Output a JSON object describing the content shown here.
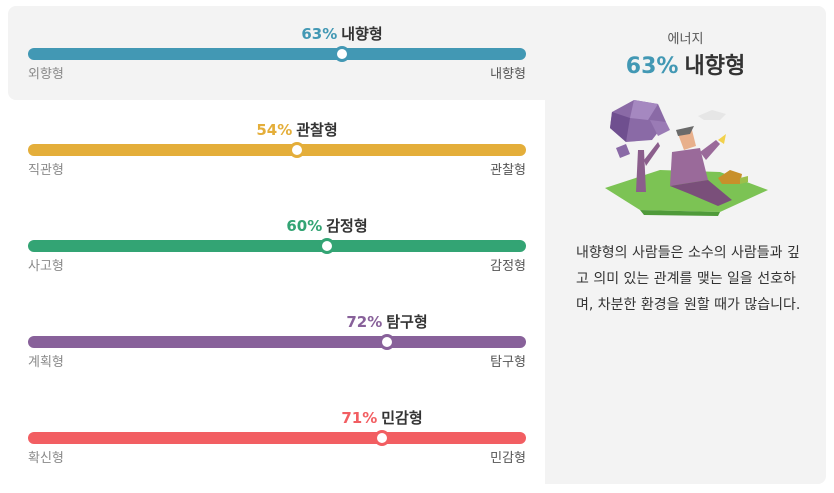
{
  "traits": [
    {
      "percent": "63%",
      "value": 0.63,
      "name": "내향형",
      "left_label": "외향형",
      "right_label": "내향형",
      "color": "#4298b4"
    },
    {
      "percent": "54%",
      "value": 0.54,
      "name": "관찰형",
      "left_label": "직관형",
      "right_label": "관찰형",
      "color": "#e4ae3a"
    },
    {
      "percent": "60%",
      "value": 0.6,
      "name": "감정형",
      "left_label": "사고형",
      "right_label": "감정형",
      "color": "#33a474"
    },
    {
      "percent": "72%",
      "value": 0.72,
      "name": "탐구형",
      "left_label": "계획형",
      "right_label": "탐구형",
      "color": "#88619a"
    },
    {
      "percent": "71%",
      "value": 0.71,
      "name": "민감형",
      "left_label": "확신형",
      "right_label": "민감형",
      "color": "#f25e62"
    }
  ],
  "panel": {
    "kicker": "에너지",
    "percent": "63%",
    "name": "내향형",
    "description": "내향형의 사람들은 소수의 사람들과 깊고 의미 있는 관계를 맺는 일을 선호하며, 차분한 환경을 원할 때가 많습니다.",
    "illustration_icon": "person-under-tree-illustration"
  }
}
